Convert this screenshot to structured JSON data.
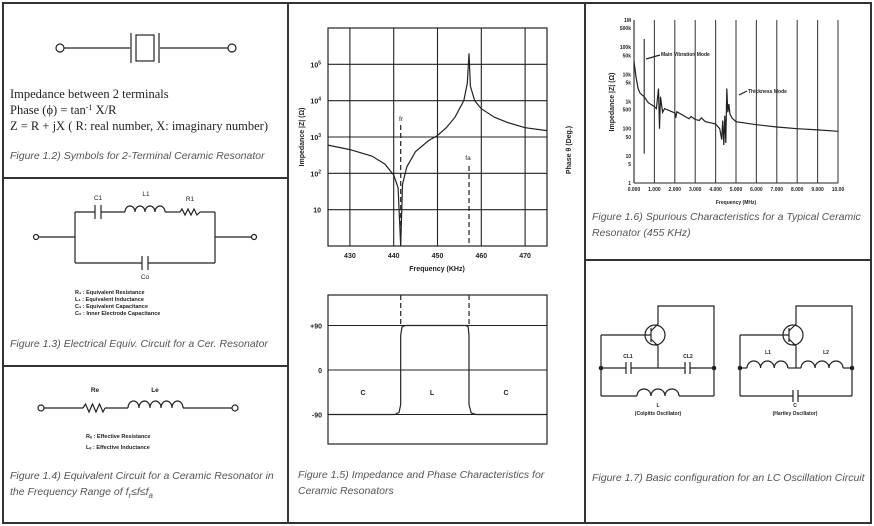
{
  "fig12": {
    "line1": "Impedance between 2 terminals",
    "line2a": "Phase (ϕ) = tan",
    "line2sup": "-1",
    "line2b": " X/R",
    "line3": "Z = R + jX ( R: real number, X: imaginary number)",
    "caption": "Figure 1.2) Symbols for 2-Terminal Ceramic Resonator"
  },
  "fig13": {
    "c1": "C1",
    "l1": "L1",
    "r1": "R1",
    "co": "Co",
    "legend": [
      "R₁ : Equivalent Resistance",
      "L₁ : Equivalent Inductance",
      "C₁ : Equivalent Capacitance",
      "C₀ : Inner Electrode Capacitance"
    ],
    "caption": "Figure 1.3) Electrical Equiv. Circuit for a Cer. Resonator"
  },
  "fig14": {
    "re": "Re",
    "le": "Le",
    "legend": [
      "Rₑ : Effective Resistance",
      "Lₑ : Effective Inductance"
    ],
    "caption1": "Figure 1.4) Equivalent Circuit for a Ceramic Resonator in",
    "caption2a": "the Frequency Range of f",
    "caption2b": "r",
    "caption2c": "≤f≤f",
    "caption2d": "a"
  },
  "fig15": {
    "caption1": "Figure 1.5) Impedance and Phase Characteristics for",
    "caption2": "Ceramic Resonators",
    "fr_label": "fr",
    "fa_label": "fa",
    "region_labels": [
      "C",
      "L",
      "C"
    ]
  },
  "fig16": {
    "caption1": "Figure 1.6) Spurious Characteristics for a Typical Ceramic",
    "caption2": "Resonator (455 KHz)",
    "annotations": [
      "Main Vibration Mode",
      "Thickness Mode"
    ]
  },
  "fig17": {
    "cl1": "CL1",
    "cl2": "CL2",
    "l": "L",
    "colpitts": "(Colpitts Oscillator)",
    "l1": "L1",
    "l2": "L2",
    "c": "C",
    "hartley": "(Hartley Oscillator)",
    "caption": "Figure 1.7) Basic configuration for an LC Oscillation Circuit"
  },
  "chart_data": [
    {
      "type": "line",
      "xlabel": "Frequency (KHz)",
      "ylabel": "Impedance |Z| (Ω)",
      "xlim": [
        425,
        475
      ],
      "ylim": [
        1,
        1000000
      ],
      "yscale": "log",
      "grid": true,
      "xticks": [
        "430",
        "440",
        "450",
        "460",
        "470"
      ],
      "yticks": [
        {
          "base": "10",
          "exp": "5"
        },
        {
          "base": "10",
          "exp": "4"
        },
        {
          "base": "10",
          "exp": "3"
        },
        {
          "base": "10",
          "exp": "2"
        },
        {
          "base": "10",
          "exp": ""
        }
      ],
      "markers": {
        "fr": 441.6,
        "fa": 457.2
      },
      "x": [
        425,
        430,
        435,
        438,
        440,
        441,
        441.6,
        442,
        443,
        445,
        448,
        450,
        452,
        454,
        456,
        456.8,
        457.2,
        457.5,
        458.5,
        460,
        463,
        466,
        470,
        475
      ],
      "y": [
        600,
        450,
        300,
        180,
        90,
        40,
        1,
        50,
        150,
        400,
        800,
        1100,
        1800,
        3500,
        10000,
        30000,
        200000,
        25000,
        10000,
        6000,
        3500,
        2500,
        1800,
        1500
      ]
    },
    {
      "type": "line",
      "ylabel": "Phase θ (Deg.)",
      "xlim": [
        425,
        475
      ],
      "ylim": [
        -180,
        180
      ],
      "grid": true,
      "yticks": [
        "+90",
        "0",
        "-90"
      ],
      "x": [
        425,
        440.2,
        441.2,
        441.6,
        441.6,
        441.9,
        442.6,
        456.5,
        457.0,
        457.2,
        457.2,
        457.7,
        458.8,
        475
      ],
      "y": [
        -90,
        -90,
        -86,
        -70,
        70,
        87,
        90,
        90,
        87,
        70,
        -70,
        -87,
        -90,
        -90
      ]
    },
    {
      "type": "line",
      "xlabel": "Frequency (MHz)",
      "ylabel": "Impedance |Z| (Ω)",
      "xlim": [
        0,
        10
      ],
      "ylim": [
        1,
        1000000
      ],
      "yscale": "log",
      "xticks": [
        "0.000",
        "1.000",
        "2.000",
        "3.000",
        "4.000",
        "5.000",
        "6.000",
        "7.000",
        "8.000",
        "9.000",
        "10.00"
      ],
      "yticks": [
        "1M",
        "500k",
        "100k",
        "50k",
        "10k",
        "5k",
        "1k",
        "500",
        "100",
        "50",
        "10",
        "5",
        "1"
      ],
      "ytick_values": [
        1000000,
        500000,
        100000,
        50000,
        10000,
        5000,
        1000,
        500,
        100,
        50,
        10,
        5,
        1
      ],
      "x": [
        0,
        0.1,
        0.2,
        0.3,
        0.5,
        0.7,
        1,
        1.1,
        1.2,
        1.25,
        1.3,
        1.4,
        1.5,
        2,
        2.05,
        2.1,
        2.5,
        2.7,
        2.8,
        3,
        3.2,
        3.3,
        3.5,
        4,
        4.2,
        4.3,
        4.35,
        4.4,
        4.45,
        4.5,
        4.55,
        4.6,
        4.65,
        4.7,
        4.8,
        5,
        6,
        7,
        8,
        9,
        10
      ],
      "y": [
        30000,
        8000,
        3000,
        2000,
        1500,
        900,
        650,
        550,
        3000,
        100,
        1500,
        400,
        550,
        380,
        250,
        420,
        280,
        230,
        280,
        220,
        200,
        250,
        180,
        150,
        100,
        40,
        200,
        25,
        300,
        30,
        3000,
        400,
        800,
        350,
        250,
        180,
        140,
        115,
        100,
        90,
        80
      ]
    }
  ]
}
